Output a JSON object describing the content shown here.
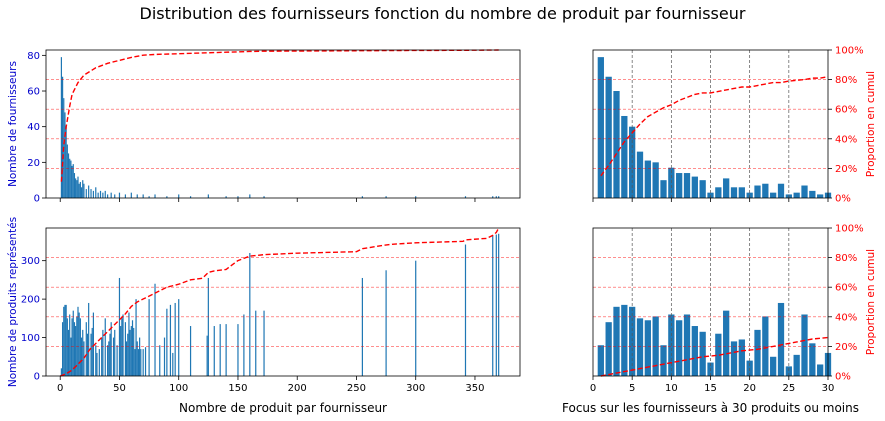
{
  "title": "Distribution des fournisseurs fonction du nombre de produit par fournisseur",
  "colors": {
    "bar": "#1f77b4",
    "cumul": "#ff0000",
    "left_axis": "#0000cc",
    "right_axis": "#ff0000"
  },
  "chart_data": [
    {
      "id": "top_left",
      "type": "bar",
      "title": "",
      "xlabel": "",
      "ylabel": "Nombre de fournisseurs",
      "y2label": "",
      "xlim": [
        -12,
        388
      ],
      "ylim": [
        0,
        83
      ],
      "xticks": [
        0,
        50,
        100,
        150,
        200,
        250,
        300,
        350
      ],
      "xtick_labels": [],
      "yticks": [
        0,
        20,
        40,
        60,
        80
      ],
      "y2lim": [
        0,
        1
      ],
      "y2ticks": [],
      "y2_hlines": [
        0.2,
        0.4,
        0.6,
        0.8
      ],
      "series": [
        {
          "name": "Nombre de fournisseurs",
          "axis": "left",
          "x": [
            1,
            2,
            3,
            4,
            5,
            6,
            7,
            8,
            9,
            10,
            11,
            12,
            13,
            14,
            15,
            16,
            17,
            18,
            19,
            20,
            22,
            24,
            26,
            28,
            30,
            32,
            34,
            36,
            38,
            40,
            43,
            46,
            50,
            55,
            60,
            65,
            70,
            75,
            80,
            90,
            100,
            110,
            125,
            140,
            150,
            160,
            172,
            255,
            275,
            300,
            342,
            365,
            368,
            370
          ],
          "values": [
            79,
            68,
            56,
            48,
            40,
            30,
            25,
            22,
            21,
            18,
            19,
            14,
            11,
            10,
            12,
            8,
            9,
            6,
            10,
            8,
            5,
            7,
            5,
            4,
            6,
            3,
            4,
            3,
            4,
            2,
            3,
            2,
            3,
            2,
            3,
            2,
            2,
            1,
            2,
            1,
            2,
            1,
            2,
            1,
            1,
            2,
            1,
            1,
            1,
            1,
            1,
            1,
            1,
            1
          ]
        },
        {
          "name": "Proportion en cumul",
          "axis": "right",
          "style": "dashed",
          "x": [
            1,
            3,
            5,
            8,
            10,
            15,
            20,
            30,
            40,
            50,
            60,
            70,
            80,
            100,
            120,
            140,
            160,
            172,
            250,
            300,
            340,
            370
          ],
          "values": [
            0.11,
            0.36,
            0.48,
            0.62,
            0.7,
            0.78,
            0.83,
            0.88,
            0.91,
            0.93,
            0.95,
            0.965,
            0.97,
            0.975,
            0.98,
            0.985,
            0.99,
            0.992,
            0.995,
            0.997,
            0.998,
            1.0
          ]
        }
      ]
    },
    {
      "id": "top_right",
      "type": "bar",
      "title": "",
      "xlabel": "",
      "ylabel": "",
      "y2label": "Proportion en cumul",
      "xlim": [
        0,
        30
      ],
      "ylim": [
        0,
        83
      ],
      "xticks": [
        0,
        5,
        10,
        15,
        20,
        25,
        30
      ],
      "xtick_labels": [],
      "yticks": [],
      "y2lim": [
        0,
        1
      ],
      "y2ticks": [
        "0%",
        "20%",
        "40%",
        "60%",
        "80%",
        "100%"
      ],
      "y2_hlines": [
        0.2,
        0.4,
        0.6,
        0.8
      ],
      "vlines": [
        5,
        10,
        15,
        20,
        25
      ],
      "series": [
        {
          "name": "Nombre de fournisseurs",
          "axis": "left",
          "x": [
            1,
            2,
            3,
            4,
            5,
            6,
            7,
            8,
            9,
            10,
            11,
            12,
            13,
            14,
            15,
            16,
            17,
            18,
            19,
            20,
            21,
            22,
            23,
            24,
            25,
            26,
            27,
            28,
            29,
            30
          ],
          "values": [
            79,
            68,
            60,
            46,
            40,
            26,
            21,
            20,
            10,
            17,
            14,
            14,
            12,
            10,
            3,
            6,
            11,
            6,
            6,
            3,
            7,
            8,
            3,
            8,
            2,
            3,
            7,
            4,
            2,
            3
          ]
        },
        {
          "name": "Proportion en cumul",
          "axis": "right",
          "style": "dashed",
          "x": [
            1,
            2,
            3,
            4,
            5,
            6,
            7,
            8,
            9,
            10,
            11,
            12,
            13,
            14,
            15,
            16,
            17,
            18,
            19,
            20,
            21,
            22,
            23,
            24,
            25,
            26,
            27,
            28,
            29,
            30
          ],
          "values": [
            0.15,
            0.22,
            0.3,
            0.38,
            0.44,
            0.5,
            0.55,
            0.58,
            0.61,
            0.63,
            0.66,
            0.68,
            0.7,
            0.71,
            0.71,
            0.72,
            0.73,
            0.74,
            0.75,
            0.75,
            0.76,
            0.77,
            0.78,
            0.78,
            0.79,
            0.795,
            0.8,
            0.81,
            0.81,
            0.82
          ]
        }
      ]
    },
    {
      "id": "bottom_left",
      "type": "bar",
      "title": "",
      "xlabel": "Nombre de produit par fournisseur",
      "ylabel": "Nombre de produits représentés",
      "y2label": "",
      "xlim": [
        -12,
        388
      ],
      "ylim": [
        0,
        385
      ],
      "xticks": [
        0,
        50,
        100,
        150,
        200,
        250,
        300,
        350
      ],
      "xtick_labels": [
        "0",
        "50",
        "100",
        "150",
        "200",
        "250",
        "300",
        "350"
      ],
      "yticks": [
        0,
        100,
        200,
        300
      ],
      "y2lim": [
        0,
        1
      ],
      "y2ticks": [],
      "y2_hlines": [
        0.2,
        0.4,
        0.6,
        0.8
      ],
      "series": [
        {
          "name": "Nombre de produits représentés",
          "axis": "left",
          "x": [
            1,
            2,
            3,
            4,
            5,
            6,
            7,
            8,
            9,
            10,
            11,
            12,
            13,
            14,
            15,
            16,
            17,
            18,
            19,
            20,
            22,
            23,
            24,
            26,
            27,
            28,
            30,
            31,
            33,
            35,
            36,
            38,
            40,
            41,
            42,
            43,
            45,
            46,
            48,
            50,
            51,
            52,
            53,
            55,
            56,
            57,
            58,
            59,
            60,
            61,
            62,
            63,
            64,
            65,
            66,
            67,
            68,
            70,
            72,
            75,
            80,
            84,
            88,
            90,
            93,
            95,
            97,
            100,
            110,
            124,
            125,
            130,
            135,
            140,
            150,
            155,
            160,
            165,
            172,
            255,
            275,
            300,
            342,
            365,
            368,
            370
          ],
          "values": [
            20,
            140,
            180,
            185,
            185,
            150,
            120,
            160,
            100,
            150,
            170,
            140,
            130,
            155,
            180,
            165,
            150,
            100,
            120,
            90,
            140,
            110,
            190,
            110,
            125,
            165,
            80,
            60,
            70,
            100,
            120,
            150,
            80,
            90,
            110,
            140,
            100,
            120,
            80,
            255,
            130,
            150,
            160,
            140,
            90,
            110,
            165,
            120,
            130,
            145,
            125,
            70,
            200,
            90,
            70,
            100,
            70,
            70,
            75,
            200,
            240,
            80,
            100,
            175,
            185,
            60,
            190,
            200,
            130,
            105,
            255,
            130,
            135,
            135,
            135,
            160,
            320,
            170,
            170,
            255,
            275,
            300,
            342,
            365,
            368,
            370
          ]
        },
        {
          "name": "Proportion en cumul",
          "axis": "right",
          "style": "dashed",
          "x": [
            0,
            5,
            10,
            15,
            20,
            25,
            30,
            35,
            40,
            45,
            50,
            55,
            60,
            65,
            70,
            80,
            90,
            100,
            110,
            120,
            125,
            130,
            140,
            150,
            160,
            172,
            200,
            250,
            255,
            270,
            280,
            300,
            340,
            342,
            360,
            365,
            368,
            370
          ],
          "values": [
            0.0,
            0.015,
            0.04,
            0.08,
            0.12,
            0.18,
            0.22,
            0.26,
            0.3,
            0.34,
            0.38,
            0.42,
            0.47,
            0.5,
            0.52,
            0.56,
            0.6,
            0.62,
            0.65,
            0.66,
            0.7,
            0.71,
            0.72,
            0.78,
            0.81,
            0.82,
            0.83,
            0.84,
            0.86,
            0.88,
            0.89,
            0.9,
            0.91,
            0.92,
            0.93,
            0.95,
            0.97,
            1.0
          ]
        }
      ]
    },
    {
      "id": "bottom_right",
      "type": "bar",
      "title": "",
      "xlabel": "Focus sur les fournisseurs à 30 produits ou moins",
      "ylabel": "",
      "y2label": "Proportion en cumul",
      "xlim": [
        0,
        30
      ],
      "ylim": [
        0,
        385
      ],
      "xticks": [
        0,
        5,
        10,
        15,
        20,
        25,
        30
      ],
      "xtick_labels": [
        "0",
        "5",
        "10",
        "15",
        "20",
        "25",
        "30"
      ],
      "yticks": [],
      "y2lim": [
        0,
        1
      ],
      "y2ticks": [
        "0%",
        "20%",
        "40%",
        "60%",
        "80%",
        "100%"
      ],
      "y2_hlines": [
        0.2,
        0.4,
        0.6,
        0.8
      ],
      "vlines": [
        5,
        10,
        15,
        20,
        25
      ],
      "series": [
        {
          "name": "Nombre de produits représentés",
          "axis": "left",
          "x": [
            1,
            2,
            3,
            4,
            5,
            6,
            7,
            8,
            9,
            10,
            11,
            12,
            13,
            14,
            15,
            16,
            17,
            18,
            19,
            20,
            21,
            22,
            23,
            24,
            25,
            26,
            27,
            28,
            29,
            30
          ],
          "values": [
            80,
            140,
            180,
            185,
            180,
            150,
            145,
            155,
            80,
            160,
            145,
            160,
            130,
            115,
            35,
            110,
            170,
            90,
            95,
            40,
            120,
            155,
            50,
            190,
            25,
            55,
            160,
            85,
            30,
            60
          ]
        },
        {
          "name": "Proportion en cumul",
          "axis": "right",
          "style": "dashed",
          "x": [
            1,
            2,
            3,
            4,
            5,
            6,
            7,
            8,
            9,
            10,
            11,
            12,
            13,
            14,
            15,
            16,
            17,
            18,
            19,
            20,
            21,
            22,
            23,
            24,
            25,
            26,
            27,
            28,
            29,
            30
          ],
          "values": [
            0.0,
            0.01,
            0.02,
            0.03,
            0.04,
            0.05,
            0.06,
            0.07,
            0.08,
            0.09,
            0.1,
            0.11,
            0.12,
            0.13,
            0.135,
            0.14,
            0.15,
            0.16,
            0.17,
            0.175,
            0.18,
            0.19,
            0.2,
            0.21,
            0.22,
            0.23,
            0.24,
            0.25,
            0.255,
            0.26
          ]
        }
      ]
    }
  ]
}
